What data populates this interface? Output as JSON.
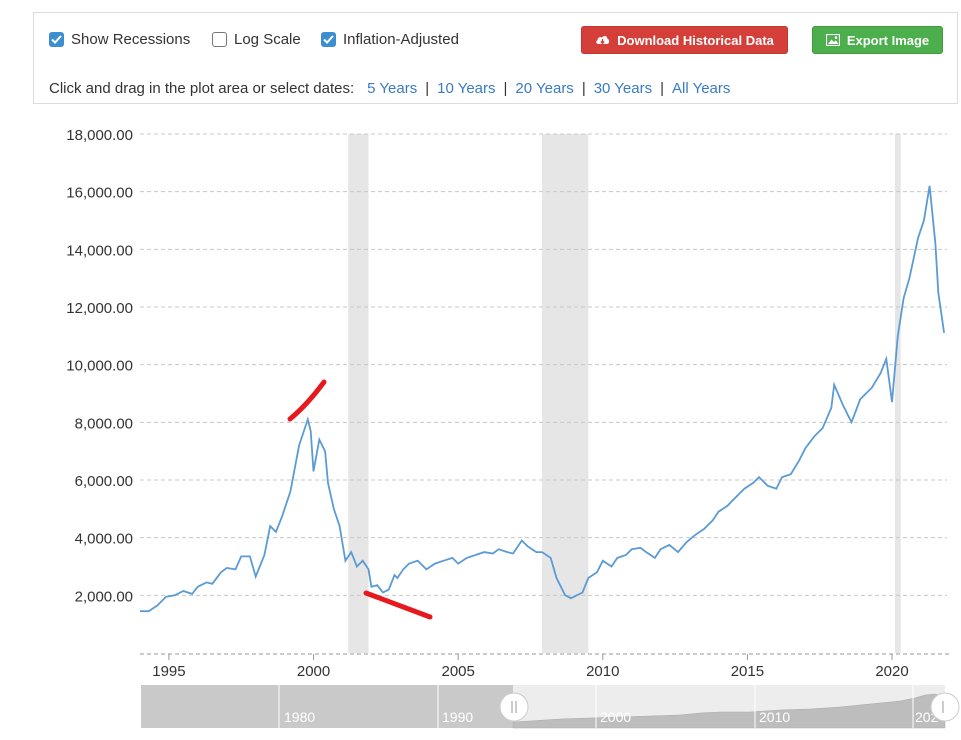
{
  "toolbar": {
    "show_recessions": "Show Recessions",
    "log_scale": "Log Scale",
    "inflation_adjusted": "Inflation-Adjusted",
    "download_label": "Download Historical Data",
    "export_label": "Export Image",
    "range_prompt": "Click and drag in the plot area or select dates:",
    "range_5": "5 Years",
    "range_10": "10 Years",
    "range_20": "20 Years",
    "range_30": "30 Years",
    "range_all": "All Years",
    "sep": "|"
  },
  "colors": {
    "line": "#5b9bd5",
    "recession": "#e6e6e6",
    "annotation": "#e8191e",
    "checkbox": "#3b8fcf",
    "download": "#d43f3a",
    "export": "#4cae4c",
    "link": "#3a7bc1"
  },
  "icons": {
    "download": "cloud-download-icon",
    "export": "image-icon",
    "checked": "checkmark-icon"
  },
  "chart_data": {
    "type": "line",
    "log_scale": false,
    "x_range": [
      1994.0,
      2021.9
    ],
    "ylim": [
      0,
      18000
    ],
    "grid": true,
    "y_ticks": [
      "2,000.00",
      "4,000.00",
      "6,000.00",
      "8,000.00",
      "10,000.00",
      "12,000.00",
      "14,000.00",
      "16,000.00",
      "18,000.00"
    ],
    "y_tick_values": [
      2000,
      4000,
      6000,
      8000,
      10000,
      12000,
      14000,
      16000,
      18000
    ],
    "x_ticks": [
      "1995",
      "2000",
      "2005",
      "2010",
      "2015",
      "2020"
    ],
    "x_tick_values": [
      1995,
      2000,
      2005,
      2010,
      2015,
      2020
    ],
    "recessions": [
      [
        2001.2,
        2001.9
      ],
      [
        2007.9,
        2009.5
      ],
      [
        2020.1,
        2020.3
      ]
    ],
    "series": [
      {
        "x": [
          1994.0,
          1994.3,
          1994.6,
          1994.9,
          1995.2,
          1995.5,
          1995.8,
          1996.0,
          1996.3,
          1996.5,
          1996.8,
          1997.0,
          1997.3,
          1997.5,
          1997.8,
          1998.0,
          1998.3,
          1998.5,
          1998.7,
          1998.9,
          1999.2,
          1999.5,
          1999.8,
          1999.9,
          2000.0,
          2000.2,
          2000.4,
          2000.5,
          2000.7,
          2000.9,
          2001.0,
          2001.1,
          2001.3,
          2001.5,
          2001.7,
          2001.9,
          2002.0,
          2002.2,
          2002.4,
          2002.6,
          2002.8,
          2002.9,
          2003.1,
          2003.3,
          2003.6,
          2003.9,
          2004.2,
          2004.5,
          2004.8,
          2005.0,
          2005.3,
          2005.6,
          2005.9,
          2006.2,
          2006.4,
          2006.7,
          2006.9,
          2007.2,
          2007.4,
          2007.7,
          2007.9,
          2008.2,
          2008.4,
          2008.7,
          2008.9,
          2009.1,
          2009.3,
          2009.5,
          2009.8,
          2010.0,
          2010.3,
          2010.5,
          2010.8,
          2011.0,
          2011.3,
          2011.5,
          2011.8,
          2012.0,
          2012.3,
          2012.6,
          2012.9,
          2013.2,
          2013.5,
          2013.8,
          2014.0,
          2014.3,
          2014.6,
          2014.9,
          2015.2,
          2015.4,
          2015.7,
          2016.0,
          2016.2,
          2016.5,
          2016.8,
          2017.0,
          2017.3,
          2017.6,
          2017.9,
          2018.0,
          2018.3,
          2018.6,
          2018.9,
          2019.0,
          2019.3,
          2019.6,
          2019.8,
          2020.0,
          2020.2,
          2020.4,
          2020.6,
          2020.9,
          2021.1,
          2021.3,
          2021.5,
          2021.6,
          2021.8
        ],
        "values": [
          1450,
          1450,
          1650,
          1950,
          2000,
          2150,
          2050,
          2300,
          2450,
          2400,
          2800,
          2950,
          2900,
          3350,
          3350,
          2650,
          3400,
          4400,
          4200,
          4700,
          5600,
          7200,
          8100,
          7700,
          6300,
          7400,
          7000,
          5900,
          5000,
          4400,
          3800,
          3200,
          3500,
          3000,
          3200,
          2900,
          2300,
          2350,
          2100,
          2200,
          2700,
          2600,
          2900,
          3100,
          3200,
          2900,
          3100,
          3200,
          3300,
          3100,
          3300,
          3400,
          3500,
          3450,
          3600,
          3500,
          3450,
          3900,
          3700,
          3500,
          3500,
          3300,
          2600,
          2000,
          1900,
          2000,
          2100,
          2600,
          2800,
          3200,
          3000,
          3300,
          3400,
          3600,
          3650,
          3500,
          3300,
          3600,
          3750,
          3500,
          3850,
          4100,
          4300,
          4600,
          4900,
          5100,
          5400,
          5700,
          5900,
          6100,
          5800,
          5700,
          6100,
          6200,
          6700,
          7100,
          7500,
          7800,
          8500,
          9300,
          8600,
          8000,
          8800,
          8900,
          9200,
          9700,
          10200,
          8700,
          11000,
          12300,
          13000,
          14400,
          15000,
          16200,
          14200,
          12500,
          11100
        ]
      }
    ]
  }
}
